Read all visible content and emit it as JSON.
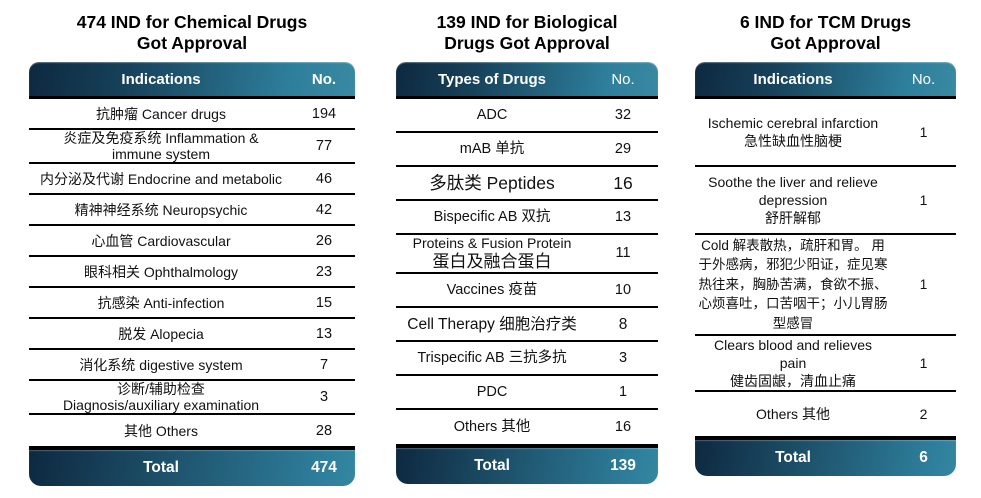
{
  "colors": {
    "header_gradient_start": "#0d2940",
    "header_gradient_end": "#2e7f9c",
    "header_text": "#ffffff",
    "row_divider": "#000000",
    "body_text": "#111111",
    "background": "#ffffff"
  },
  "tables": [
    {
      "title": "474 IND for Chemical Drugs\nGot Approval",
      "columns": {
        "label": "Indications",
        "no": "No."
      },
      "rows": [
        {
          "label": "抗肿瘤 Cancer drugs",
          "no": "194"
        },
        {
          "label": "炎症及免疫系统 Inflammation &\nimmune system",
          "no": "77"
        },
        {
          "label": "内分泌及代谢 Endocrine and metabolic",
          "no": "46"
        },
        {
          "label": "精神神经系统 Neuropsychic",
          "no": "42"
        },
        {
          "label": "心血管 Cardiovascular",
          "no": "26"
        },
        {
          "label": "眼科相关 Ophthalmology",
          "no": "23"
        },
        {
          "label": "抗感染 Anti-infection",
          "no": "15"
        },
        {
          "label": "脱发 Alopecia",
          "no": "13"
        },
        {
          "label": "消化系统 digestive system",
          "no": "7"
        },
        {
          "label": "诊断/辅助检查\nDiagnosis/auxiliary examination",
          "no": "3"
        },
        {
          "label": "其他 Others",
          "no": "28"
        }
      ],
      "total": {
        "label": "Total",
        "no": "474"
      }
    },
    {
      "title": "139 IND for Biological\nDrugs Got Approval",
      "columns": {
        "label": "Types of Drugs",
        "no": "No."
      },
      "rows": [
        {
          "label": "ADC",
          "no": "32"
        },
        {
          "label": "mAB 单抗",
          "no": "29"
        },
        {
          "label": "多肽类 Peptides",
          "no": "16"
        },
        {
          "label": "Bispecific AB 双抗",
          "no": "13"
        },
        {
          "label": "Proteins & Fusion Protein",
          "label2": "蛋白及融合蛋白",
          "no": "11"
        },
        {
          "label": "Vaccines 疫苗",
          "no": "10"
        },
        {
          "label": "Cell Therapy 细胞治疗类",
          "no": "8"
        },
        {
          "label": "Trispecific AB 三抗多抗",
          "no": "3"
        },
        {
          "label": "PDC",
          "no": "1"
        },
        {
          "label": "Others 其他",
          "no": "16"
        }
      ],
      "total": {
        "label": "Total",
        "no": "139"
      }
    },
    {
      "title": "6 IND for TCM Drugs\nGot Approval",
      "columns": {
        "label": "Indications",
        "no": "No."
      },
      "rows": [
        {
          "label": "Ischemic cerebral infarction\n急性缺血性脑梗",
          "no": "1"
        },
        {
          "label": "Soothe the liver and relieve\ndepression\n舒肝解郁",
          "no": "1"
        },
        {
          "label": "Cold 解表散热，疏肝和胃。 用\n于外感病，邪犯少阳证，症见寒\n热往来，胸胁苦满，食欲不振、\n心烦喜吐，口苦咽干；小儿胃肠\n型感冒",
          "no": "1"
        },
        {
          "label": "Clears blood and relieves\npain\n健齿固龈，清血止痛",
          "no": "1"
        },
        {
          "label": "Others 其他",
          "no": "2"
        }
      ],
      "total": {
        "label": "Total",
        "no": "6"
      }
    }
  ]
}
